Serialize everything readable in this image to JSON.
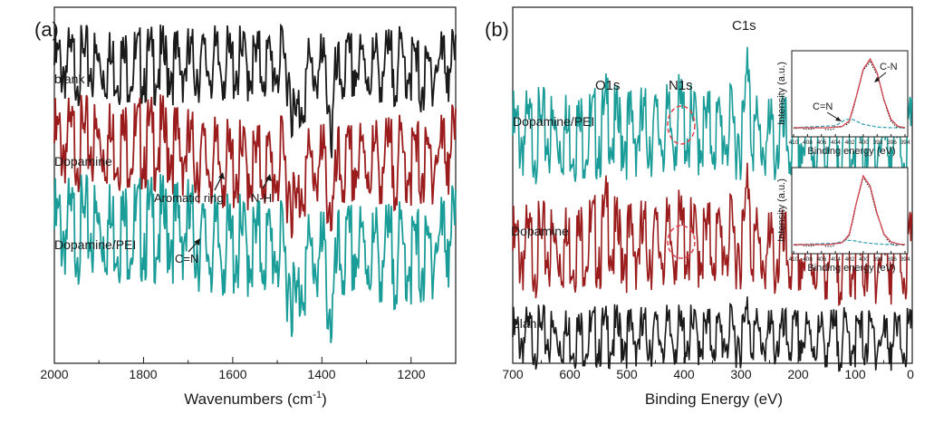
{
  "colors": {
    "black": "#1a1a1a",
    "red": "#9b1c1c",
    "teal": "#1a9c98",
    "fit_red": "#d2434f",
    "fit_blue": "#3aa4b8",
    "ring": "#e0404a"
  },
  "panel_a": {
    "label": "(a)",
    "xlabel": "Wavenumbers (cm",
    "xlabel_sup": "-1",
    "xlabel_end": ")",
    "ticks": [
      "2000",
      "1800",
      "1600",
      "1400",
      "1200"
    ],
    "trace_labels": [
      "blank",
      "Dopamine",
      "Dopamine/PEI"
    ],
    "annotations": [
      "Aromatic ring",
      "N-H",
      "C=N"
    ]
  },
  "panel_b": {
    "label": "(b)",
    "xlabel": "Binding Energy (eV)",
    "ticks": [
      "700",
      "600",
      "500",
      "400",
      "300",
      "200",
      "100",
      "0"
    ],
    "trace_labels": [
      "Dopamine/PEI",
      "Dopamine",
      "blank"
    ],
    "peak_labels": [
      "O1s",
      "N1s",
      "C1s"
    ],
    "inset_ylabel": "Intensity (a.u.)",
    "inset_xlabel": "Binding energy (eV)",
    "inset_ticks": [
      "410",
      "408",
      "406",
      "404",
      "402",
      "400",
      "398",
      "396",
      "394"
    ],
    "inset_annotations": [
      "C=N",
      "C-N"
    ]
  },
  "chart_data": [
    {
      "type": "line",
      "title": "",
      "xlabel": "Wavenumbers (cm-1)",
      "ylabel": "",
      "xlim": [
        2000,
        1100
      ],
      "series": [
        {
          "name": "blank",
          "x": [
            2000,
            1700,
            1500,
            1475,
            1460,
            1450,
            1430,
            1400,
            1385,
            1378,
            1370,
            1350,
            1200,
            1175,
            1165,
            1150,
            1130,
            1100
          ],
          "y": [
            0,
            0,
            0,
            -0.02,
            -0.8,
            -0.5,
            -0.1,
            -0.05,
            -0.25,
            -0.95,
            -0.25,
            -0.05,
            0,
            -0.2,
            -0.2,
            0,
            0.05,
            0.02
          ]
        },
        {
          "name": "Dopamine",
          "x": [
            2000,
            1750,
            1650,
            1600,
            1520,
            1505,
            1490,
            1470,
            1458,
            1445,
            1420,
            1395,
            1380,
            1375,
            1365,
            1330,
            1300,
            1180,
            1165,
            1150,
            1100
          ],
          "y": [
            0,
            0,
            -0.25,
            -0.3,
            -0.28,
            -0.35,
            -0.25,
            -0.5,
            -0.95,
            -0.4,
            -0.3,
            -0.3,
            -0.75,
            -0.95,
            -0.35,
            -0.3,
            -0.22,
            -0.25,
            -0.35,
            -0.15,
            0
          ]
        },
        {
          "name": "Dopamine/PEI",
          "x": [
            2000,
            1700,
            1665,
            1640,
            1500,
            1470,
            1458,
            1445,
            1420,
            1395,
            1380,
            1375,
            1365,
            1330,
            1180,
            1165,
            1150,
            1100
          ],
          "y": [
            0,
            0,
            -0.18,
            -0.2,
            -0.2,
            -0.5,
            -0.95,
            -0.45,
            -0.3,
            -0.35,
            -0.9,
            -0.97,
            -0.35,
            -0.25,
            -0.3,
            -0.4,
            -0.15,
            0
          ]
        }
      ],
      "annotations": [
        {
          "text": "Aromatic ring",
          "x": 1600
        },
        {
          "text": "N-H",
          "x": 1510
        },
        {
          "text": "C=N",
          "x": 1665
        }
      ]
    },
    {
      "type": "line",
      "title": "",
      "xlabel": "Binding Energy (eV)",
      "ylabel": "",
      "xlim": [
        700,
        0
      ],
      "series": [
        {
          "name": "Dopamine/PEI",
          "x": [
            700,
            560,
            540,
            533,
            526,
            500,
            420,
            402,
            395,
            320,
            295,
            286,
            283,
            278,
            270,
            200,
            0
          ],
          "y": [
            0,
            0.05,
            0.1,
            0.7,
            0.05,
            0.1,
            0.1,
            0.5,
            0.1,
            0.08,
            0.1,
            2.3,
            0.5,
            0.15,
            -0.15,
            -0.15,
            -0.15
          ]
        },
        {
          "name": "Dopamine",
          "x": [
            700,
            600,
            560,
            545,
            533,
            526,
            500,
            420,
            402,
            395,
            320,
            295,
            286,
            283,
            278,
            270,
            200,
            0
          ],
          "y": [
            0,
            0.1,
            0.3,
            0.15,
            0.95,
            0.15,
            0.15,
            0.15,
            0.45,
            0.15,
            0.2,
            0.25,
            2.2,
            0.3,
            0.3,
            -0.1,
            -0.15,
            -0.15
          ]
        },
        {
          "name": "blank",
          "x": [
            700,
            300,
            295,
            286,
            283,
            278,
            270,
            200,
            0
          ],
          "y": [
            0,
            0.02,
            0.05,
            0.85,
            0.05,
            0.15,
            -0.05,
            -0.05,
            -0.05
          ]
        }
      ],
      "annotations": [
        {
          "text": "O1s",
          "x": 533
        },
        {
          "text": "N1s",
          "x": 402
        },
        {
          "text": "C1s",
          "x": 285
        }
      ]
    },
    {
      "type": "line",
      "title": "",
      "xlabel": "Binding energy (eV)",
      "ylabel": "Intensity (a.u.)",
      "xlim": [
        410,
        394
      ],
      "series": [
        {
          "name": "",
          "x": [
            410,
            405,
            403,
            402,
            401,
            400,
            399,
            398,
            397,
            396,
            395,
            394
          ],
          "y": [
            0,
            0,
            0.02,
            0.1,
            0.45,
            0.85,
            1.0,
            0.8,
            0.4,
            0.12,
            0.02,
            0
          ]
        },
        {
          "name": "",
          "x": [
            410,
            404,
            402.5,
            401.5,
            400,
            398,
            396,
            394
          ],
          "y": [
            0,
            0.03,
            0.12,
            0.12,
            0.05,
            0.01,
            0,
            0
          ]
        }
      ],
      "annotations": [
        {
          "text": "C=N",
          "x": 403
        },
        {
          "text": "C-N",
          "x": 398
        }
      ]
    },
    {
      "type": "line",
      "title": "",
      "xlabel": "Binding energy (eV)",
      "ylabel": "Intensity (a.u.)",
      "xlim": [
        410,
        394
      ],
      "series": [
        {
          "name": "",
          "x": [
            410,
            405,
            403,
            402,
            401,
            400,
            399,
            398,
            397,
            396,
            395,
            394
          ],
          "y": [
            0,
            0,
            0.03,
            0.15,
            0.6,
            1.0,
            0.85,
            0.45,
            0.15,
            0.04,
            0.01,
            0
          ]
        },
        {
          "name": "",
          "x": [
            410,
            404,
            402.5,
            401.5,
            400,
            398,
            396,
            394
          ],
          "y": [
            0,
            0.02,
            0.06,
            0.06,
            0.03,
            0.01,
            0,
            0
          ]
        }
      ]
    }
  ]
}
